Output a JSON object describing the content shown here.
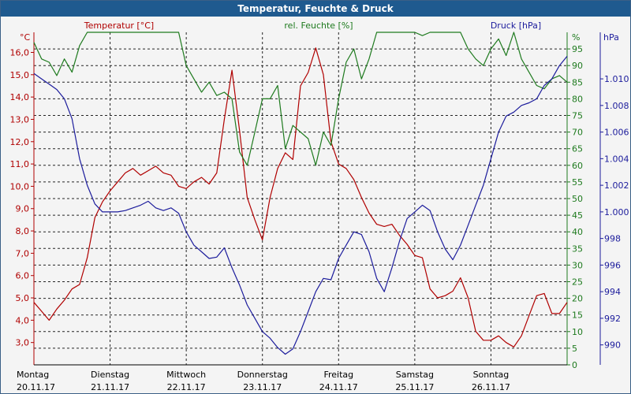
{
  "title": "Temperatur, Feuchte & Druck",
  "colors": {
    "title_bg": "#1f5a8f",
    "temperature": "#b00000",
    "humidity": "#1e7a1e",
    "pressure": "#1c1c9c",
    "grid": "#000000"
  },
  "chart_data": {
    "type": "line",
    "title": "Temperatur, Feuchte & Druck",
    "grid": true,
    "axes": {
      "temperature": {
        "label": "Temperatur [°C]",
        "unit": "°C",
        "range": [
          2.0,
          16.9
        ],
        "ticks": [
          3.0,
          4.0,
          5.0,
          6.0,
          7.0,
          8.0,
          9.0,
          10.0,
          11.0,
          12.0,
          13.0,
          14.0,
          15.0,
          16.0
        ],
        "tick_labels": [
          "3,0",
          "4,0",
          "5,0",
          "6,0",
          "7,0",
          "8,0",
          "9,0",
          "10,0",
          "11,0",
          "12,0",
          "13,0",
          "14,0",
          "15,0",
          "16,0"
        ]
      },
      "humidity": {
        "label": "rel. Feuchte [%]",
        "unit": "%",
        "range": [
          0,
          100
        ],
        "ticks": [
          0,
          5,
          10,
          15,
          20,
          25,
          30,
          35,
          40,
          45,
          50,
          55,
          60,
          65,
          70,
          75,
          80,
          85,
          90,
          95
        ]
      },
      "pressure": {
        "label": "Druck [hPa]",
        "unit": "hPa",
        "range": [
          988.5,
          1013.5
        ],
        "ticks": [
          990,
          992,
          994,
          996,
          998,
          1000,
          1002,
          1004,
          1006,
          1008,
          1010
        ],
        "tick_labels": [
          "990",
          "992",
          "994",
          "996",
          "998",
          "1.000",
          "1.002",
          "1.004",
          "1.006",
          "1.008",
          "1.010"
        ]
      }
    },
    "x_ticks": [
      {
        "day": "Montag",
        "date": "20.11.17"
      },
      {
        "day": "Dienstag",
        "date": "21.11.17"
      },
      {
        "day": "Mittwoch",
        "date": "22.11.17"
      },
      {
        "day": "Donnerstag",
        "date": "23.11.17"
      },
      {
        "day": "Freitag",
        "date": "24.11.17"
      },
      {
        "day": "Samstag",
        "date": "25.11.17"
      },
      {
        "day": "Sonntag",
        "date": "26.11.17"
      }
    ],
    "x_range_days": [
      0,
      7.0
    ],
    "series": [
      {
        "name": "Temperatur [°C]",
        "axis": "temperature",
        "x": [
          0,
          0.1,
          0.2,
          0.3,
          0.4,
          0.5,
          0.6,
          0.7,
          0.8,
          0.9,
          1.0,
          1.1,
          1.2,
          1.3,
          1.4,
          1.5,
          1.6,
          1.7,
          1.8,
          1.9,
          2.0,
          2.1,
          2.2,
          2.3,
          2.4,
          2.5,
          2.6,
          2.7,
          2.8,
          2.9,
          3.0,
          3.1,
          3.2,
          3.3,
          3.4,
          3.5,
          3.6,
          3.7,
          3.8,
          3.9,
          4.0,
          4.1,
          4.2,
          4.3,
          4.4,
          4.5,
          4.6,
          4.7,
          4.8,
          4.9,
          5.0,
          5.1,
          5.2,
          5.3,
          5.4,
          5.5,
          5.6,
          5.7,
          5.8,
          5.9,
          6.0,
          6.1,
          6.2,
          6.3,
          6.4,
          6.5,
          6.6,
          6.7,
          6.8,
          6.9,
          7.0
        ],
        "values": [
          4.8,
          4.4,
          4.0,
          4.5,
          4.9,
          5.4,
          5.6,
          6.8,
          8.6,
          9.3,
          9.8,
          10.2,
          10.6,
          10.8,
          10.5,
          10.7,
          10.9,
          10.6,
          10.5,
          10.0,
          9.9,
          10.2,
          10.4,
          10.1,
          10.6,
          13.0,
          15.2,
          12.5,
          9.5,
          8.5,
          7.6,
          9.5,
          10.8,
          11.5,
          11.2,
          14.5,
          15.1,
          16.2,
          15.0,
          12.0,
          11.0,
          10.8,
          10.3,
          9.5,
          8.8,
          8.3,
          8.2,
          8.3,
          7.8,
          7.4,
          6.9,
          6.8,
          5.4,
          5.0,
          5.1,
          5.3,
          5.9,
          5.0,
          3.5,
          3.1,
          3.1,
          3.3,
          3.0,
          2.8,
          3.3,
          4.2,
          5.1,
          5.2,
          4.3,
          4.3,
          4.8
        ]
      },
      {
        "name": "rel. Feuchte [%]",
        "axis": "humidity",
        "x": [
          0,
          0.1,
          0.2,
          0.3,
          0.4,
          0.5,
          0.6,
          0.7,
          0.8,
          0.9,
          1.0,
          1.1,
          1.2,
          1.3,
          1.4,
          1.5,
          1.6,
          1.7,
          1.8,
          1.9,
          2.0,
          2.1,
          2.2,
          2.3,
          2.4,
          2.5,
          2.6,
          2.7,
          2.8,
          2.9,
          3.0,
          3.1,
          3.2,
          3.3,
          3.4,
          3.5,
          3.6,
          3.7,
          3.8,
          3.9,
          4.0,
          4.1,
          4.2,
          4.3,
          4.4,
          4.5,
          4.6,
          4.7,
          4.8,
          4.9,
          5.0,
          5.1,
          5.2,
          5.3,
          5.4,
          5.5,
          5.6,
          5.7,
          5.8,
          5.9,
          6.0,
          6.1,
          6.2,
          6.3,
          6.4,
          6.5,
          6.6,
          6.7,
          6.8,
          6.9,
          7.0
        ],
        "values": [
          97,
          92,
          91,
          87,
          92,
          88,
          96,
          100,
          100,
          100,
          100,
          100,
          100,
          100,
          100,
          100,
          100,
          100,
          100,
          100,
          90,
          86,
          82,
          85,
          81,
          82,
          80,
          64,
          60,
          70,
          80,
          80,
          84,
          65,
          72,
          70,
          68,
          60,
          70,
          66,
          80,
          91,
          95,
          86,
          92,
          100,
          100,
          100,
          100,
          100,
          100,
          99,
          100,
          100,
          100,
          100,
          100,
          95,
          92,
          90,
          95,
          98,
          93,
          100,
          92,
          88,
          84,
          83,
          86,
          87,
          85
        ]
      },
      {
        "name": "Druck [hPa]",
        "axis": "pressure",
        "x": [
          0,
          0.1,
          0.2,
          0.3,
          0.4,
          0.5,
          0.6,
          0.7,
          0.8,
          0.9,
          1.0,
          1.1,
          1.2,
          1.3,
          1.4,
          1.5,
          1.6,
          1.7,
          1.8,
          1.9,
          2.0,
          2.1,
          2.2,
          2.3,
          2.4,
          2.5,
          2.6,
          2.7,
          2.8,
          2.9,
          3.0,
          3.1,
          3.2,
          3.3,
          3.4,
          3.5,
          3.6,
          3.7,
          3.8,
          3.9,
          4.0,
          4.1,
          4.2,
          4.3,
          4.4,
          4.5,
          4.6,
          4.7,
          4.8,
          4.9,
          5.0,
          5.1,
          5.2,
          5.3,
          5.4,
          5.5,
          5.6,
          5.7,
          5.8,
          5.9,
          6.0,
          6.1,
          6.2,
          6.3,
          6.4,
          6.5,
          6.6,
          6.7,
          6.8,
          6.9,
          7.0
        ],
        "values": [
          1010.4,
          1010.0,
          1009.6,
          1009.2,
          1008.5,
          1007.0,
          1004.0,
          1002.0,
          1000.6,
          1000.0,
          1000.0,
          1000.0,
          1000.1,
          1000.3,
          1000.5,
          1000.8,
          1000.3,
          1000.1,
          1000.3,
          999.9,
          998.5,
          997.5,
          997.0,
          996.5,
          996.6,
          997.3,
          995.8,
          994.5,
          993.0,
          992.0,
          991.0,
          990.5,
          989.8,
          989.3,
          989.7,
          991.0,
          992.5,
          994.0,
          995.0,
          994.9,
          996.5,
          997.5,
          998.5,
          998.3,
          997.0,
          995.0,
          994.0,
          995.8,
          997.8,
          999.5,
          1000.0,
          1000.5,
          1000.1,
          998.5,
          997.2,
          996.4,
          997.5,
          999.0,
          1000.5,
          1002.0,
          1004.0,
          1006.0,
          1007.2,
          1007.5,
          1008.0,
          1008.2,
          1008.5,
          1009.5,
          1010.0,
          1011.0,
          1011.7
        ]
      }
    ]
  }
}
